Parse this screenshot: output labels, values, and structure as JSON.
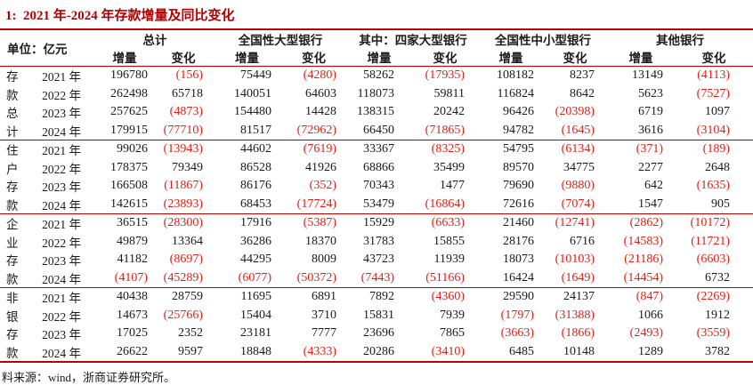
{
  "title": "1:  2021 年-2024 年存款增量及同比变化",
  "colors": {
    "title_red": "#b40000",
    "border_red": "#c00000",
    "negative_red": "#e41e14"
  },
  "header": {
    "unit_label": "单位：亿元",
    "groups": [
      "总计",
      "全国性大型银行",
      "其中：四家大型银行",
      "全国性中小型银行",
      "其他银行"
    ],
    "increment_label": "增量",
    "change_label": "变化"
  },
  "row_groups": [
    {
      "label": "存款总计",
      "label_chars": [
        "存",
        "款",
        "总",
        "计"
      ],
      "rows": [
        {
          "year": "2021 年",
          "values": [
            "196780",
            "(156)",
            "75449",
            "(4280)",
            "58262",
            "(17935)",
            "108182",
            "8237",
            "13149",
            "(4113)"
          ]
        },
        {
          "year": "2022 年",
          "values": [
            "262498",
            "65718",
            "140051",
            "64603",
            "118073",
            "59811",
            "116824",
            "8642",
            "5623",
            "(7527)"
          ]
        },
        {
          "year": "2023 年",
          "values": [
            "257625",
            "(4873)",
            "154480",
            "14428",
            "138315",
            "20242",
            "96426",
            "(20398)",
            "6719",
            "1097"
          ]
        },
        {
          "year": "2024 年",
          "values": [
            "179915",
            "(77710)",
            "81517",
            "(72962)",
            "66450",
            "(71865)",
            "94782",
            "(1645)",
            "3616",
            "(3104)"
          ]
        }
      ]
    },
    {
      "label": "住户存款",
      "label_chars": [
        "住",
        "户",
        "存",
        "款"
      ],
      "rows": [
        {
          "year": "2021 年",
          "values": [
            "99026",
            "(13943)",
            "44602",
            "(7619)",
            "33367",
            "(8325)",
            "54795",
            "(6134)",
            "(371)",
            "(189)"
          ]
        },
        {
          "year": "2022 年",
          "values": [
            "178375",
            "79349",
            "86528",
            "41926",
            "68866",
            "35499",
            "89570",
            "34775",
            "2277",
            "2648"
          ]
        },
        {
          "year": "2023 年",
          "values": [
            "166508",
            "(11867)",
            "86176",
            "(352)",
            "70343",
            "1477",
            "79690",
            "(9880)",
            "642",
            "(1635)"
          ]
        },
        {
          "year": "2024 年",
          "values": [
            "142615",
            "(23893)",
            "68453",
            "(17724)",
            "53479",
            "(16864)",
            "72616",
            "(7074)",
            "1547",
            "905"
          ]
        }
      ]
    },
    {
      "label": "企业存款",
      "label_chars": [
        "企",
        "业",
        "存",
        "款"
      ],
      "rows": [
        {
          "year": "2021 年",
          "values": [
            "36515",
            "(28300)",
            "17916",
            "(5387)",
            "15929",
            "(6633)",
            "21460",
            "(12741)",
            "(2862)",
            "(10172)"
          ]
        },
        {
          "year": "2022 年",
          "values": [
            "49879",
            "13364",
            "36286",
            "18370",
            "31783",
            "15855",
            "28176",
            "6716",
            "(14583)",
            "(11721)"
          ]
        },
        {
          "year": "2023 年",
          "values": [
            "41182",
            "(8697)",
            "44295",
            "8009",
            "43723",
            "11939",
            "18073",
            "(10103)",
            "(21186)",
            "(6603)"
          ]
        },
        {
          "year": "2024 年",
          "values": [
            "(4107)",
            "(45289)",
            "(6077)",
            "(50372)",
            "(7443)",
            "(51166)",
            "16424",
            "(1649)",
            "(14454)",
            "6732"
          ]
        }
      ]
    },
    {
      "label": "非银存款",
      "label_chars": [
        "非",
        "银",
        "存",
        "款"
      ],
      "rows": [
        {
          "year": "2021 年",
          "values": [
            "40438",
            "28759",
            "11695",
            "6891",
            "7892",
            "(4360)",
            "29590",
            "24137",
            "(847)",
            "(2269)"
          ]
        },
        {
          "year": "2022 年",
          "values": [
            "14673",
            "(25766)",
            "15404",
            "3710",
            "15831",
            "7939",
            "(1797)",
            "(31388)",
            "1066",
            "1912"
          ]
        },
        {
          "year": "2023 年",
          "values": [
            "17025",
            "2352",
            "23181",
            "7777",
            "23696",
            "7865",
            "(3663)",
            "(1866)",
            "(2493)",
            "(3559)"
          ]
        },
        {
          "year": "2024 年",
          "values": [
            "26622",
            "9597",
            "18848",
            "(4333)",
            "20286",
            "(3410)",
            "6485",
            "10148",
            "1289",
            "3782"
          ]
        }
      ]
    }
  ],
  "source": "料来源：wind，浙商证券研究所。"
}
